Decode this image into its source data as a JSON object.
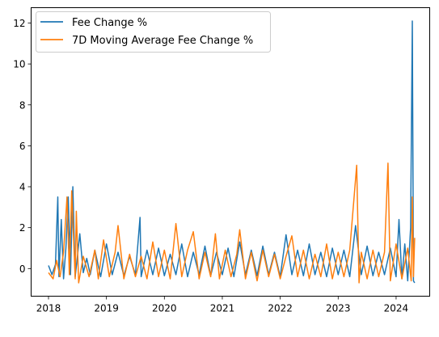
{
  "chart_data": {
    "type": "line",
    "title": "",
    "xlabel": "",
    "ylabel": "",
    "xlim": [
      2017.7,
      2024.58
    ],
    "ylim": [
      -1.35,
      12.75
    ],
    "x_ticks": [
      {
        "value": 2018,
        "label": "2018"
      },
      {
        "value": 2019,
        "label": "2019"
      },
      {
        "value": 2020,
        "label": "2020"
      },
      {
        "value": 2021,
        "label": "2021"
      },
      {
        "value": 2022,
        "label": "2022"
      },
      {
        "value": 2023,
        "label": "2023"
      },
      {
        "value": 2024,
        "label": "2024"
      }
    ],
    "y_ticks": [
      {
        "value": 0,
        "label": "0"
      },
      {
        "value": 2,
        "label": "2"
      },
      {
        "value": 4,
        "label": "4"
      },
      {
        "value": 6,
        "label": "6"
      },
      {
        "value": 8,
        "label": "8"
      },
      {
        "value": 10,
        "label": "10"
      },
      {
        "value": 12,
        "label": "12"
      }
    ],
    "grid": false,
    "legend_position": "upper-left",
    "series": [
      {
        "name": "Fee Change %",
        "color": "#1f77b4",
        "x": [
          2018.0,
          2018.06,
          2018.12,
          2018.16,
          2018.18,
          2018.22,
          2018.26,
          2018.3,
          2018.34,
          2018.38,
          2018.42,
          2018.46,
          2018.5,
          2018.54,
          2018.6,
          2018.66,
          2018.72,
          2018.8,
          2018.9,
          2019.0,
          2019.1,
          2019.2,
          2019.3,
          2019.4,
          2019.5,
          2019.58,
          2019.6,
          2019.7,
          2019.8,
          2019.9,
          2020.0,
          2020.1,
          2020.2,
          2020.3,
          2020.4,
          2020.5,
          2020.6,
          2020.7,
          2020.8,
          2020.9,
          2021.0,
          2021.1,
          2021.2,
          2021.3,
          2021.4,
          2021.5,
          2021.6,
          2021.7,
          2021.8,
          2021.9,
          2022.0,
          2022.1,
          2022.2,
          2022.3,
          2022.4,
          2022.5,
          2022.6,
          2022.7,
          2022.8,
          2022.9,
          2023.0,
          2023.1,
          2023.2,
          2023.3,
          2023.4,
          2023.5,
          2023.6,
          2023.7,
          2023.8,
          2023.9,
          2024.0,
          2024.05,
          2024.1,
          2024.15,
          2024.2,
          2024.25,
          2024.28,
          2024.3,
          2024.32
        ],
        "y": [
          0.15,
          -0.3,
          0.2,
          3.5,
          -0.4,
          2.4,
          -0.5,
          1.0,
          3.5,
          -0.3,
          4.0,
          -0.4,
          0.6,
          1.7,
          -0.2,
          0.5,
          -0.3,
          0.9,
          -0.4,
          1.2,
          -0.3,
          0.8,
          -0.35,
          0.6,
          -0.3,
          2.5,
          -0.4,
          0.9,
          -0.3,
          1.0,
          -0.35,
          0.7,
          -0.3,
          1.2,
          -0.4,
          0.8,
          -0.3,
          1.1,
          -0.35,
          0.8,
          -0.3,
          1.0,
          -0.4,
          1.3,
          -0.3,
          0.9,
          -0.35,
          1.1,
          -0.3,
          0.8,
          -0.4,
          1.65,
          -0.3,
          0.9,
          -0.35,
          1.2,
          -0.3,
          0.8,
          -0.4,
          1.0,
          -0.3,
          0.9,
          -0.4,
          2.1,
          -0.3,
          1.1,
          -0.35,
          0.8,
          -0.3,
          1.0,
          -0.4,
          2.4,
          -0.5,
          1.2,
          -0.6,
          2.0,
          12.1,
          -0.6,
          -0.7
        ]
      },
      {
        "name": "7D Moving Average Fee Change %",
        "color": "#ff7f0e",
        "x": [
          2018.0,
          2018.08,
          2018.14,
          2018.2,
          2018.26,
          2018.32,
          2018.36,
          2018.4,
          2018.46,
          2018.48,
          2018.52,
          2018.6,
          2018.7,
          2018.8,
          2018.86,
          2018.95,
          2019.05,
          2019.15,
          2019.2,
          2019.3,
          2019.4,
          2019.5,
          2019.6,
          2019.7,
          2019.8,
          2019.9,
          2020.0,
          2020.1,
          2020.2,
          2020.3,
          2020.4,
          2020.5,
          2020.6,
          2020.7,
          2020.8,
          2020.88,
          2020.95,
          2021.05,
          2021.15,
          2021.25,
          2021.3,
          2021.4,
          2021.5,
          2021.6,
          2021.7,
          2021.8,
          2021.9,
          2022.0,
          2022.1,
          2022.2,
          2022.3,
          2022.4,
          2022.5,
          2022.6,
          2022.7,
          2022.8,
          2022.9,
          2023.0,
          2023.1,
          2023.2,
          2023.32,
          2023.36,
          2023.4,
          2023.5,
          2023.6,
          2023.7,
          2023.8,
          2023.86,
          2023.9,
          2024.0,
          2024.1,
          2024.2,
          2024.26,
          2024.28,
          2024.3,
          2024.32
        ],
        "y": [
          -0.2,
          -0.5,
          0.4,
          -0.4,
          0.8,
          3.5,
          -0.3,
          3.8,
          -0.5,
          2.8,
          -0.7,
          0.6,
          -0.4,
          0.9,
          -0.5,
          1.4,
          -0.4,
          0.8,
          2.1,
          -0.5,
          0.7,
          -0.4,
          0.6,
          -0.5,
          1.3,
          -0.4,
          0.9,
          -0.5,
          2.2,
          -0.4,
          0.9,
          1.8,
          -0.5,
          0.8,
          -0.4,
          1.7,
          -0.5,
          0.9,
          -0.4,
          0.7,
          1.9,
          -0.5,
          0.8,
          -0.6,
          0.9,
          -0.4,
          0.7,
          -0.5,
          0.6,
          1.6,
          -0.4,
          0.9,
          -0.5,
          0.7,
          -0.4,
          1.2,
          -0.5,
          0.8,
          -0.4,
          0.9,
          5.05,
          -0.7,
          0.8,
          -0.5,
          0.9,
          -0.4,
          0.8,
          5.15,
          -0.6,
          1.2,
          -0.5,
          1.0,
          -0.6,
          3.5,
          -0.4,
          1.5
        ]
      }
    ]
  }
}
